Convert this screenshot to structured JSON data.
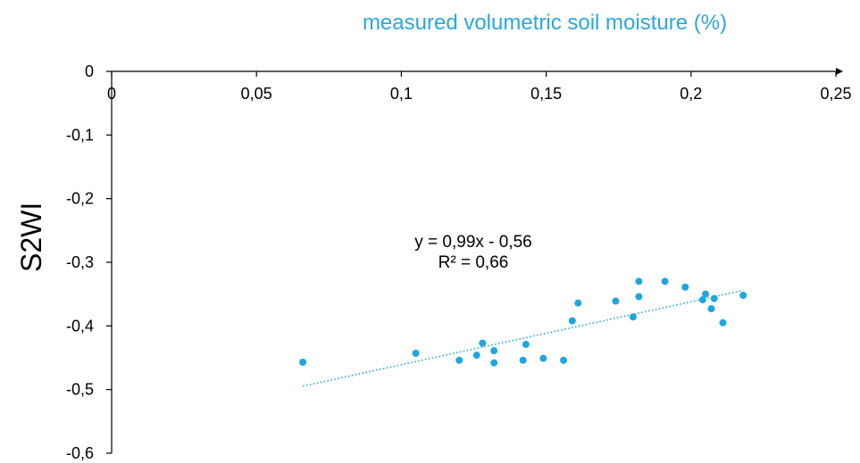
{
  "chart_data": {
    "type": "scatter",
    "title": "",
    "xlabel": "measured volumetric soil moisture (%)",
    "ylabel": "S2WI",
    "xlim": [
      0,
      0.25
    ],
    "ylim": [
      -0.6,
      0
    ],
    "x_ticks": [
      "0",
      "0,05",
      "0,1",
      "0,15",
      "0,2",
      "0,25"
    ],
    "y_ticks": [
      "0",
      "-0,1",
      "-0,2",
      "-0,3",
      "-0,4",
      "-0,5",
      "-0,6"
    ],
    "x_tick_values": [
      0,
      0.05,
      0.1,
      0.15,
      0.2,
      0.25
    ],
    "y_tick_values": [
      0,
      -0.1,
      -0.2,
      -0.3,
      -0.4,
      -0.5,
      -0.6
    ],
    "grid": false,
    "series": [
      {
        "points": [
          {
            "x": 0.066,
            "y": -0.457
          },
          {
            "x": 0.105,
            "y": -0.443
          },
          {
            "x": 0.12,
            "y": -0.454
          },
          {
            "x": 0.126,
            "y": -0.446
          },
          {
            "x": 0.128,
            "y": -0.427
          },
          {
            "x": 0.132,
            "y": -0.439
          },
          {
            "x": 0.132,
            "y": -0.458
          },
          {
            "x": 0.142,
            "y": -0.454
          },
          {
            "x": 0.143,
            "y": -0.429
          },
          {
            "x": 0.149,
            "y": -0.451
          },
          {
            "x": 0.156,
            "y": -0.454
          },
          {
            "x": 0.159,
            "y": -0.392
          },
          {
            "x": 0.161,
            "y": -0.364
          },
          {
            "x": 0.174,
            "y": -0.361
          },
          {
            "x": 0.18,
            "y": -0.386
          },
          {
            "x": 0.182,
            "y": -0.354
          },
          {
            "x": 0.182,
            "y": -0.33
          },
          {
            "x": 0.191,
            "y": -0.33
          },
          {
            "x": 0.198,
            "y": -0.339
          },
          {
            "x": 0.204,
            "y": -0.359
          },
          {
            "x": 0.205,
            "y": -0.35
          },
          {
            "x": 0.207,
            "y": -0.373
          },
          {
            "x": 0.208,
            "y": -0.357
          },
          {
            "x": 0.211,
            "y": -0.395
          },
          {
            "x": 0.218,
            "y": -0.352
          }
        ]
      }
    ],
    "trendline": {
      "slope": 0.99,
      "intercept": -0.56,
      "x_range": [
        0.066,
        0.218
      ],
      "style": "dotted"
    },
    "annotation": {
      "equation": "y = 0,99x - 0,56",
      "r_squared": "R² = 0,66"
    },
    "colors": {
      "points": "#1fa6e0",
      "trendline": "#1fa6e0",
      "xlabel": "#29a8e0",
      "axes": "#000000"
    }
  }
}
